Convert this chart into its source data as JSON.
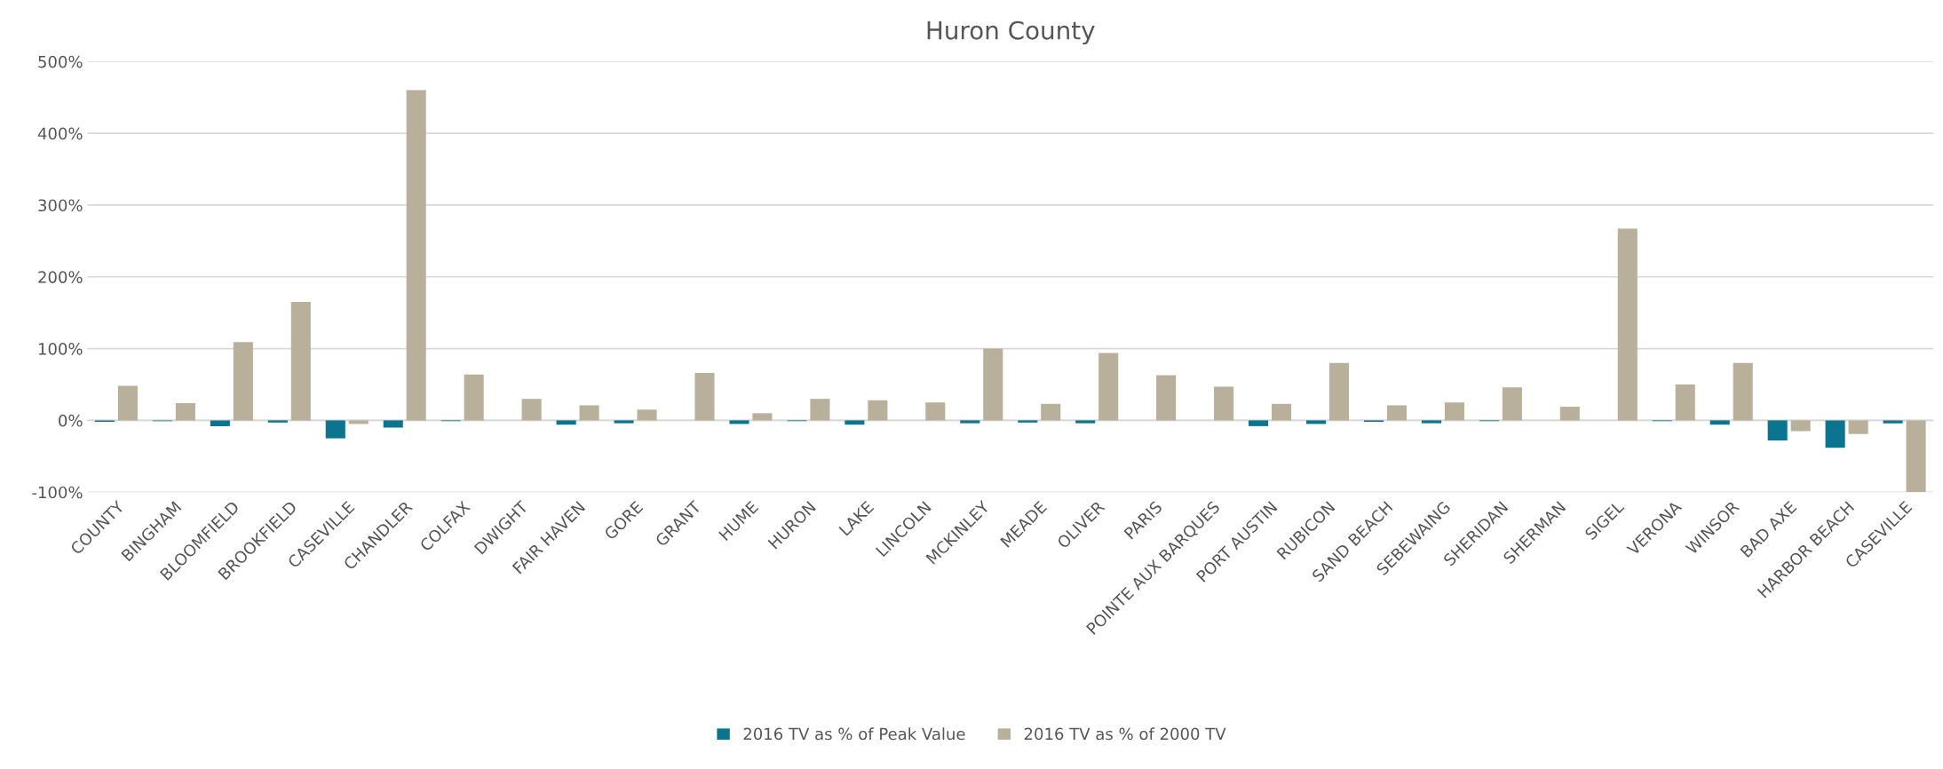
{
  "chart_data": {
    "type": "bar",
    "title": "Huron County",
    "categories": [
      "COUNTY",
      "BINGHAM",
      "BLOOMFIELD",
      "BROOKFIELD",
      "CASEVILLE",
      "CHANDLER",
      "COLFAX",
      "DWIGHT",
      "FAIR HAVEN",
      "GORE",
      "GRANT",
      "HUME",
      "HURON",
      "LAKE",
      "LINCOLN",
      "MCKINLEY",
      "MEADE",
      "OLIVER",
      "PARIS",
      "POINTE AUX BARQUES",
      "PORT AUSTIN",
      "RUBICON",
      "SAND BEACH",
      "SEBEWAING",
      "SHERIDAN",
      "SHERMAN",
      "SIGEL",
      "VERONA",
      "WINSOR",
      "BAD AXE",
      "HARBOR BEACH",
      "CASEVILLE"
    ],
    "series": [
      {
        "name": "2016 TV as % of Peak Value",
        "color": "#0b7590",
        "values": [
          -2,
          -1,
          -8,
          -3,
          -25,
          -10,
          -1,
          0,
          -6,
          -4,
          0,
          -5,
          -1,
          -6,
          0,
          -4,
          -3,
          -4,
          0,
          0,
          -8,
          -5,
          -2,
          -4,
          -1,
          0,
          0,
          -1,
          -6,
          -28,
          -38,
          -4
        ]
      },
      {
        "name": "2016 TV as % of 2000 TV",
        "color": "#b9b09b",
        "values": [
          48,
          24,
          109,
          165,
          -5,
          460,
          64,
          30,
          21,
          15,
          66,
          10,
          30,
          28,
          25,
          100,
          23,
          94,
          63,
          47,
          23,
          80,
          21,
          25,
          46,
          19,
          267,
          50,
          80,
          -15,
          -19,
          -100
        ]
      }
    ],
    "ylim": [
      -100,
      500
    ],
    "yticks": [
      {
        "value": -100,
        "label": "-100%"
      },
      {
        "value": 0,
        "label": "0%"
      },
      {
        "value": 100,
        "label": "100%"
      },
      {
        "value": 200,
        "label": "200%"
      },
      {
        "value": 300,
        "label": "300%"
      },
      {
        "value": 400,
        "label": "400%"
      },
      {
        "value": 500,
        "label": "500%"
      }
    ],
    "grid": "y",
    "legend": "bottom"
  }
}
